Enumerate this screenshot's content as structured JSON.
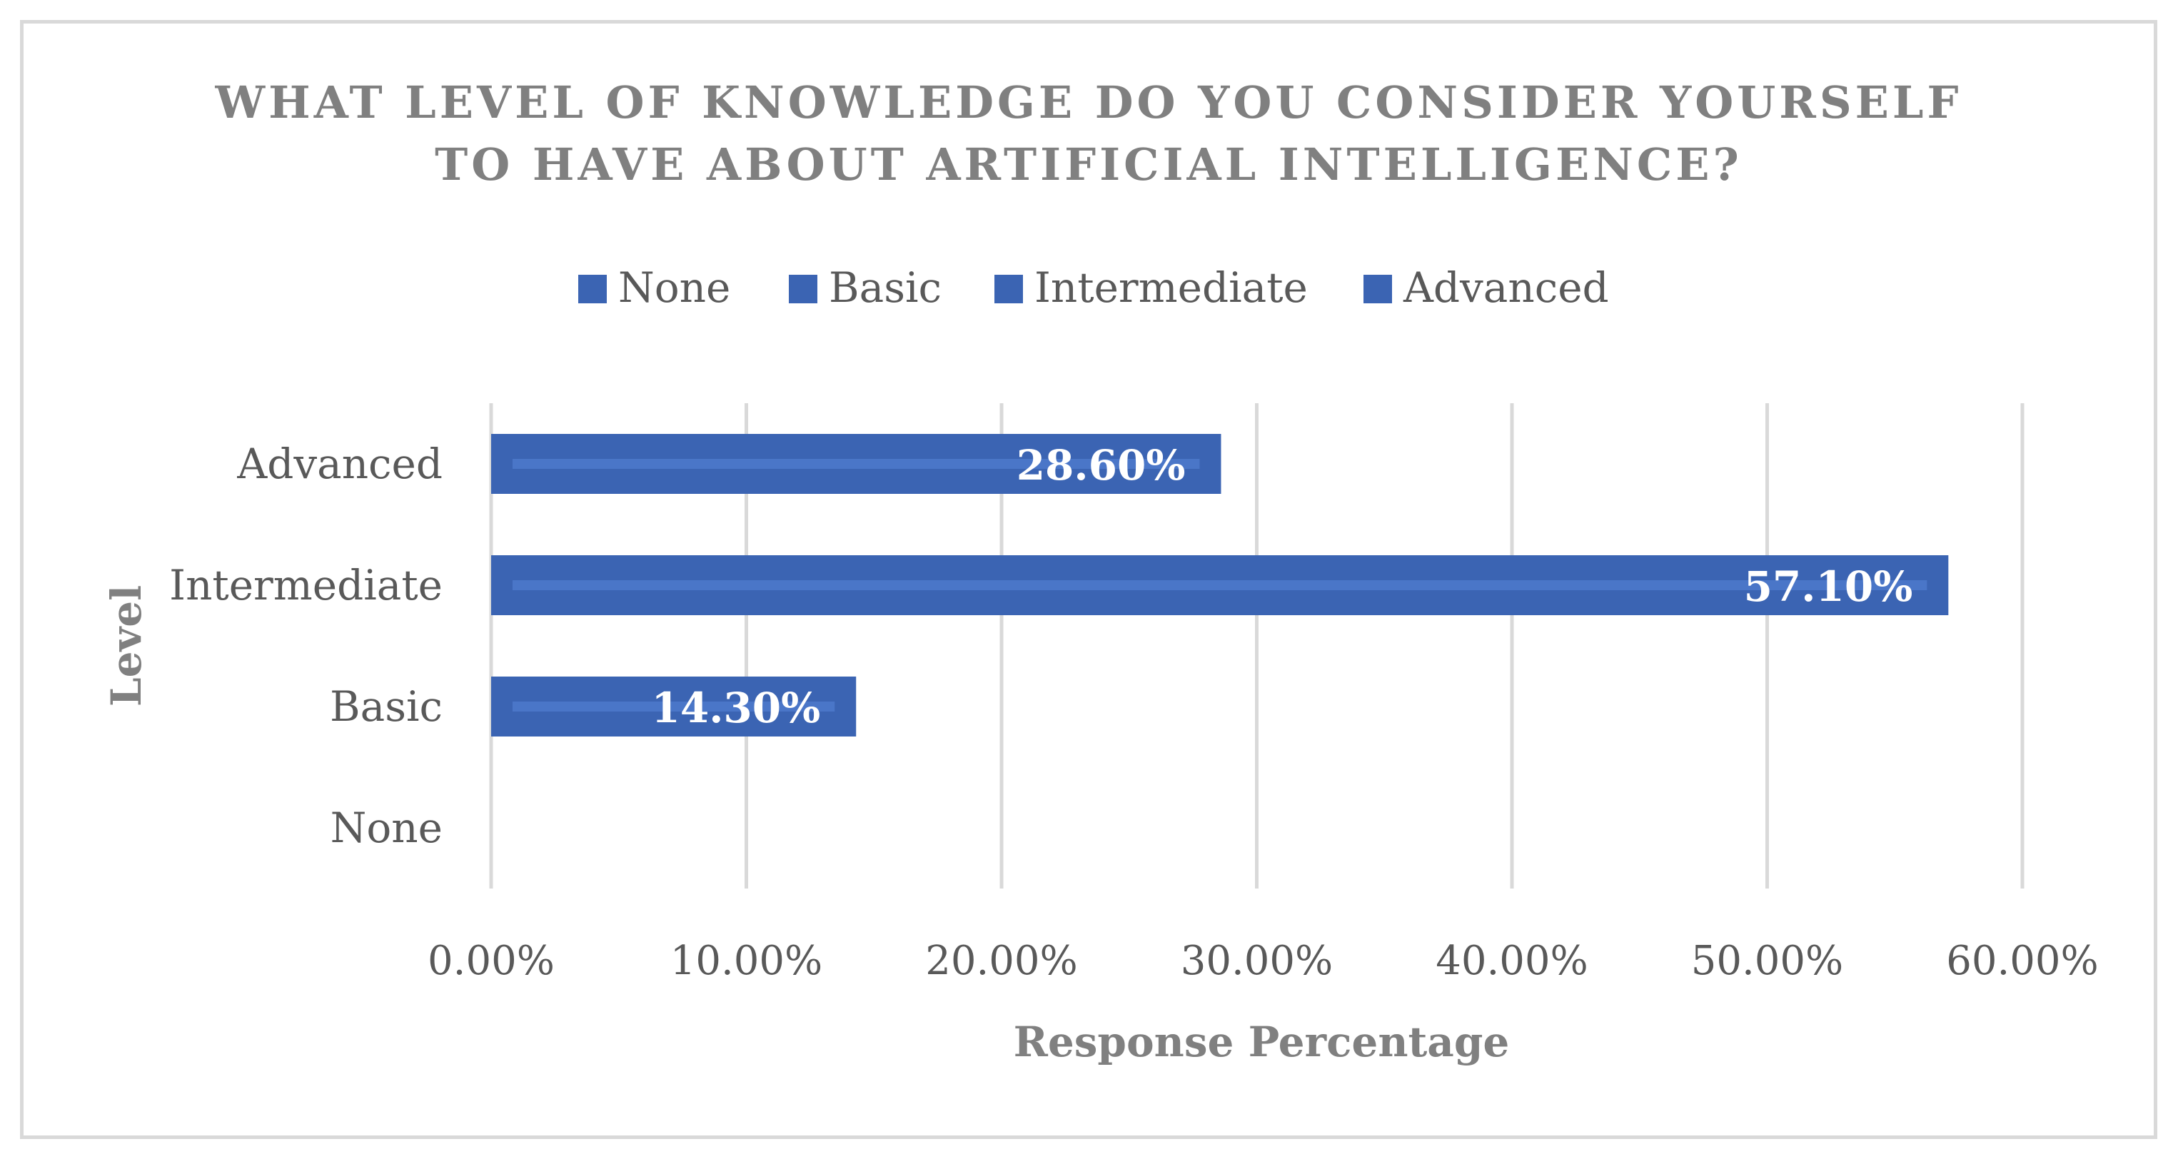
{
  "chart_data": {
    "type": "bar",
    "orientation": "horizontal",
    "title_line1": "WHAT LEVEL OF KNOWLEDGE DO YOU CONSIDER YOURSELF",
    "title_line2": "TO HAVE ABOUT ARTIFICIAL INTELLIGENCE?",
    "legend": [
      "None",
      "Basic",
      "Intermediate",
      "Advanced"
    ],
    "legend_placement": "top",
    "categories": [
      "None",
      "Basic",
      "Intermediate",
      "Advanced"
    ],
    "values": [
      0,
      14.3,
      57.1,
      28.6
    ],
    "data_labels": [
      "",
      "14.30%",
      "57.10%",
      "28.60%"
    ],
    "xlabel": "Response Percentage",
    "ylabel": "Level",
    "xlim": [
      0,
      60
    ],
    "xticks": [
      "0.00%",
      "10.00%",
      "20.00%",
      "30.00%",
      "40.00%",
      "50.00%",
      "60.00%"
    ],
    "grid": true,
    "bar_color": "#3b64b3",
    "bar_highlight": "#4a76c8",
    "text_color": "#595959",
    "title_color": "#808080",
    "grid_color": "#d9d9d9"
  }
}
